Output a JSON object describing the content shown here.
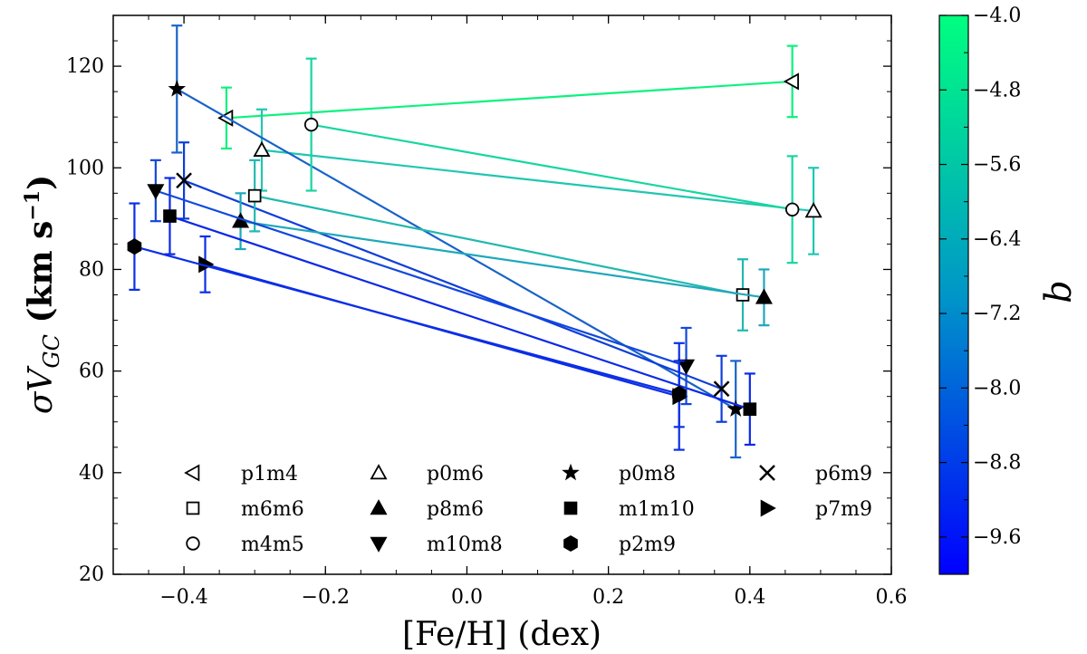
{
  "chart_data": {
    "type": "scatter",
    "xlabel": "[Fe/H] (dex)",
    "ylabel_base": "σV",
    "ylabel_sub": "GC",
    "ylabel_units_pre": " (km s",
    "ylabel_units_exp": "−1",
    "ylabel_units_post": ")",
    "xlim": [
      -0.5,
      0.6
    ],
    "ylim": [
      20,
      130
    ],
    "xticks": [
      -0.4,
      -0.2,
      0.0,
      0.2,
      0.4,
      0.6
    ],
    "xtick_labels": [
      "−0.4",
      "−0.2",
      "0.0",
      "0.2",
      "0.4",
      "0.6"
    ],
    "yticks": [
      20,
      40,
      60,
      80,
      100,
      120
    ],
    "ytick_labels": [
      "20",
      "40",
      "60",
      "80",
      "100",
      "120"
    ],
    "colorbar": {
      "label": "b",
      "range": [
        -10.0,
        -4.0
      ],
      "ticks": [
        -4.0,
        -4.8,
        -5.6,
        -6.4,
        -7.2,
        -8.0,
        -8.8,
        -9.6
      ],
      "tick_labels": [
        "−4.0",
        "−4.8",
        "−5.6",
        "−6.4",
        "−7.2",
        "−8.0",
        "−8.8",
        "−9.6"
      ],
      "color_low": "#0000ff",
      "color_high": "#00ff80"
    },
    "series": [
      {
        "name": "p1m4",
        "marker": "tri-left-open",
        "b": -4.0,
        "x": [
          -0.34,
          0.46
        ],
        "y": [
          109.8,
          117.0
        ],
        "yerr": [
          6.0,
          7.0
        ],
        "color": "#0cf27e"
      },
      {
        "name": "p0m6",
        "marker": "tri-up-open",
        "b": -6.0,
        "x": [
          -0.29,
          0.49
        ],
        "y": [
          103.5,
          91.5
        ],
        "yerr": [
          8.0,
          8.5
        ],
        "color": "#20c6b2"
      },
      {
        "name": "p0m8",
        "marker": "star",
        "b": -8.0,
        "x": [
          -0.41,
          0.38
        ],
        "y": [
          115.5,
          52.5
        ],
        "yerr": [
          12.5,
          9.5
        ],
        "color": "#1862c8"
      },
      {
        "name": "p6m9",
        "marker": "x",
        "b": -9.0,
        "x": [
          -0.4,
          0.36
        ],
        "y": [
          97.5,
          56.5
        ],
        "yerr": [
          7.5,
          6.5
        ],
        "color": "#0f3ed8"
      },
      {
        "name": "m6m6",
        "marker": "square-open",
        "b": -6.0,
        "x": [
          -0.3,
          0.39
        ],
        "y": [
          94.5,
          75.0
        ],
        "yerr": [
          7.0,
          7.0
        ],
        "color": "#21b8b0"
      },
      {
        "name": "p8m6",
        "marker": "tri-up-filled",
        "b": -6.5,
        "x": [
          -0.32,
          0.42
        ],
        "y": [
          89.5,
          74.5
        ],
        "yerr": [
          5.5,
          5.5
        ],
        "color": "#1fa8ba"
      },
      {
        "name": "m1m10",
        "marker": "square-filled",
        "b": -10.0,
        "x": [
          -0.42,
          0.4
        ],
        "y": [
          90.5,
          52.5
        ],
        "yerr": [
          7.5,
          7.0
        ],
        "color": "#0a28e8"
      },
      {
        "name": "p7m9",
        "marker": "tri-right-filled",
        "b": -9.5,
        "x": [
          -0.37,
          0.3
        ],
        "y": [
          81.0,
          55.0
        ],
        "yerr": [
          5.5,
          10.5
        ],
        "color": "#0b2ee8"
      },
      {
        "name": "m4m5",
        "marker": "circle-open",
        "b": -5.0,
        "x": [
          -0.22,
          0.46
        ],
        "y": [
          108.5,
          91.8
        ],
        "yerr": [
          13.0,
          10.5
        ],
        "color": "#17d6a0"
      },
      {
        "name": "m10m8",
        "marker": "tri-down-filled",
        "b": -8.5,
        "x": [
          -0.44,
          0.31
        ],
        "y": [
          95.5,
          61.0
        ],
        "yerr": [
          6.0,
          7.5
        ],
        "color": "#1248dc"
      },
      {
        "name": "p2m9",
        "marker": "hexagon-filled",
        "b": -9.5,
        "x": [
          -0.47,
          0.3
        ],
        "y": [
          84.5,
          55.5
        ],
        "yerr": [
          8.5,
          6.5
        ],
        "color": "#0b2ee6"
      }
    ],
    "legend": [
      [
        "p1m4",
        "p0m6",
        "p0m8",
        "p6m9"
      ],
      [
        "m6m6",
        "p8m6",
        "m1m10",
        "p7m9"
      ],
      [
        "m4m5",
        "m10m8",
        "p2m9"
      ]
    ],
    "legend_position": "bottom-center"
  }
}
